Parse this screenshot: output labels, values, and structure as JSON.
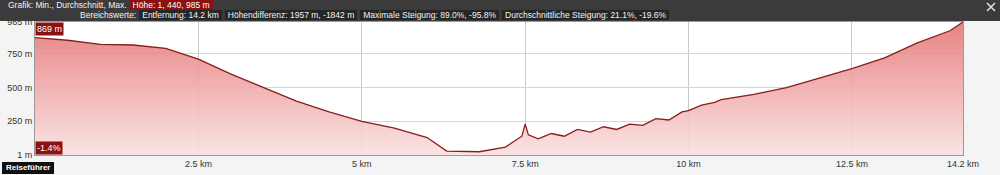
{
  "header": {
    "line1": {
      "label": "Grafik: Min., Durchschnitt, Max.",
      "value": "Höhe: 1, 440, 985 m"
    },
    "line2": {
      "label": "Bereichswerte:",
      "items": [
        "Entfernung: 14.2 km",
        "Höhendifferenz: 1957 m, -1842 m",
        "Maximale Steigung: 89.0%, -95.8%",
        "Durchschnittliche Steigung: 21.1%, -19.6%"
      ]
    }
  },
  "footer": "Reiseführer",
  "chart_data": {
    "type": "area",
    "color": "#8b1c1c",
    "grid": true,
    "annotations": [
      "869 m",
      "-1.4%"
    ],
    "x": [
      0,
      0.5,
      1.0,
      1.5,
      2.0,
      2.5,
      3.0,
      3.5,
      4.0,
      4.5,
      5.0,
      5.5,
      6.0,
      6.3,
      6.8,
      7.2,
      7.4,
      7.45,
      7.5,
      7.55,
      7.7,
      7.9,
      8.1,
      8.3,
      8.5,
      8.7,
      8.9,
      9.1,
      9.3,
      9.5,
      9.7,
      9.9,
      10.0,
      10.2,
      10.4,
      10.5,
      11.0,
      11.5,
      12.0,
      12.5,
      13.0,
      13.5,
      14.0,
      14.2
    ],
    "values": [
      869,
      850,
      820,
      815,
      790,
      710,
      600,
      500,
      400,
      320,
      250,
      200,
      130,
      30,
      25,
      60,
      120,
      140,
      230,
      150,
      120,
      160,
      140,
      190,
      170,
      210,
      190,
      230,
      220,
      270,
      260,
      320,
      330,
      370,
      390,
      410,
      450,
      500,
      570,
      640,
      720,
      830,
      920,
      985
    ],
    "xlim": [
      0,
      14.2
    ],
    "ylim": [
      1,
      985
    ],
    "xticks": [
      {
        "value": 2.5,
        "label": "2.5 km"
      },
      {
        "value": 5,
        "label": "5 km"
      },
      {
        "value": 7.5,
        "label": "7.5 km"
      },
      {
        "value": 10,
        "label": "10 km"
      },
      {
        "value": 12.5,
        "label": "12.5 km"
      },
      {
        "value": 14.2,
        "label": "14.2 km"
      }
    ],
    "yticks": [
      {
        "value": 1,
        "label": "1 m"
      },
      {
        "value": 250,
        "label": "250 m"
      },
      {
        "value": 500,
        "label": "500 m"
      },
      {
        "value": 750,
        "label": "750 m"
      },
      {
        "value": 985,
        "label": "985 m"
      }
    ]
  }
}
